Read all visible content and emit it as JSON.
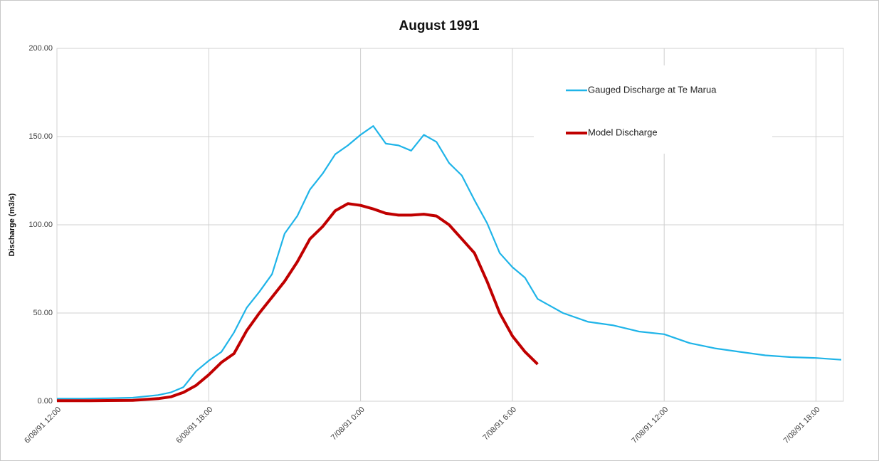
{
  "chart_data": {
    "type": "line",
    "title": "August 1991",
    "y_label": "Discharge (m3/s)",
    "xlim": [
      "6/08/91 12:00",
      "7/08/91 19:05"
    ],
    "xticks": [
      "6/08/91 12:00",
      "6/08/91 18:00",
      "7/08/91 0:00",
      "7/08/91 6:00",
      "7/08/91 12:00",
      "7/08/91 18:00"
    ],
    "ylim": [
      0,
      200
    ],
    "yticks": [
      {
        "value": 0,
        "label": "0.00"
      },
      {
        "value": 50,
        "label": "50.00"
      },
      {
        "value": 100,
        "label": "100.00"
      },
      {
        "value": 150,
        "label": "150.00"
      },
      {
        "value": 200,
        "label": "200.00"
      }
    ],
    "grid": true,
    "legend": "upper right",
    "series": [
      {
        "name": "Gauged Discharge at Te Marua",
        "color": "#1fb4e8",
        "x": [
          "6/08/91 12:00",
          "6/08/91 13:00",
          "6/08/91 14:00",
          "6/08/91 15:00",
          "6/08/91 16:00",
          "6/08/91 16:30",
          "6/08/91 17:00",
          "6/08/91 17:30",
          "6/08/91 18:00",
          "6/08/91 18:30",
          "6/08/91 19:00",
          "6/08/91 19:30",
          "6/08/91 20:00",
          "6/08/91 20:30",
          "6/08/91 21:00",
          "6/08/91 21:30",
          "6/08/91 22:00",
          "6/08/91 22:30",
          "6/08/91 23:00",
          "6/08/91 23:30",
          "7/08/91 0:00",
          "7/08/91 0:30",
          "7/08/91 1:00",
          "7/08/91 1:30",
          "7/08/91 2:00",
          "7/08/91 2:30",
          "7/08/91 3:00",
          "7/08/91 3:30",
          "7/08/91 4:00",
          "7/08/91 4:30",
          "7/08/91 5:00",
          "7/08/91 5:30",
          "7/08/91 6:00",
          "7/08/91 6:30",
          "7/08/91 7:00",
          "7/08/91 7:30",
          "7/08/91 8:00",
          "7/08/91 9:00",
          "7/08/91 10:00",
          "7/08/91 11:00",
          "7/08/91 12:00",
          "7/08/91 13:00",
          "7/08/91 14:00",
          "7/08/91 15:00",
          "7/08/91 16:00",
          "7/08/91 17:00",
          "7/08/91 18:00",
          "7/08/91 19:00"
        ],
        "values": [
          1.5,
          1.5,
          1.7,
          2.0,
          3.5,
          5,
          8,
          17,
          23,
          28,
          39,
          53,
          62,
          72,
          95,
          105,
          120,
          129,
          140,
          145,
          151,
          156,
          146,
          145,
          142,
          151,
          147,
          135,
          128,
          114,
          101,
          84,
          76,
          70,
          58,
          54,
          50,
          45,
          43,
          39.5,
          38,
          33,
          30,
          28,
          26,
          25,
          24.5,
          23.5
        ]
      },
      {
        "name": "Model Discharge",
        "color": "#c00000",
        "x": [
          "6/08/91 12:00",
          "6/08/91 13:00",
          "6/08/91 14:00",
          "6/08/91 15:00",
          "6/08/91 16:00",
          "6/08/91 16:30",
          "6/08/91 17:00",
          "6/08/91 17:30",
          "6/08/91 18:00",
          "6/08/91 18:30",
          "6/08/91 19:00",
          "6/08/91 19:30",
          "6/08/91 20:00",
          "6/08/91 20:30",
          "6/08/91 21:00",
          "6/08/91 21:30",
          "6/08/91 22:00",
          "6/08/91 22:30",
          "6/08/91 23:00",
          "6/08/91 23:30",
          "7/08/91 0:00",
          "7/08/91 0:30",
          "7/08/91 1:00",
          "7/08/91 1:30",
          "7/08/91 2:00",
          "7/08/91 2:30",
          "7/08/91 3:00",
          "7/08/91 3:30",
          "7/08/91 4:00",
          "7/08/91 4:30",
          "7/08/91 5:00",
          "7/08/91 5:30",
          "7/08/91 6:00",
          "7/08/91 6:30",
          "7/08/91 7:00"
        ],
        "values": [
          0.3,
          0.3,
          0.4,
          0.5,
          1.5,
          2.5,
          5,
          9,
          15,
          22,
          27,
          40,
          50,
          59,
          68,
          79,
          92,
          99,
          108,
          112,
          111,
          109,
          106.5,
          105.5,
          105.5,
          106,
          105,
          100,
          92,
          84,
          68,
          50,
          37,
          28,
          21
        ]
      }
    ]
  }
}
